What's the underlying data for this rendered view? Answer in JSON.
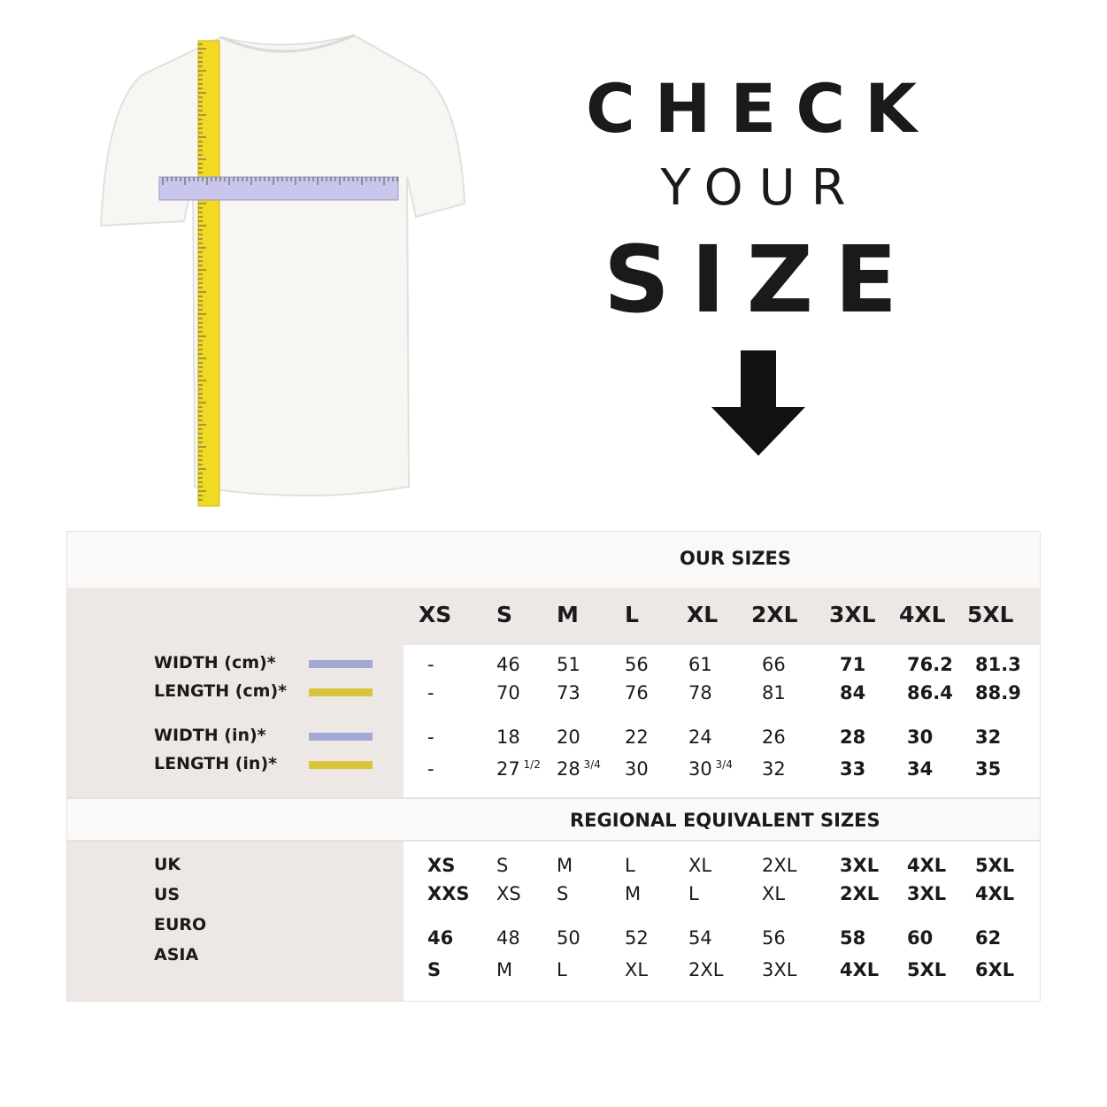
{
  "headline": {
    "line1": "CHECK",
    "line2": "YOUR",
    "line3": "SIZE"
  },
  "icons": {
    "arrow": "arrow-down-icon",
    "shirt": "tshirt-with-measuring-tapes"
  },
  "colors": {
    "width_swatch": "#a3a8d4",
    "length_swatch": "#d9c43c",
    "grey_band": "#ede8e6",
    "light_band": "#faf9f7"
  },
  "our_sizes": {
    "title": "OUR SIZES",
    "sizes": [
      "XS",
      "S",
      "M",
      "L",
      "XL",
      "2XL",
      "3XL",
      "4XL",
      "5XL"
    ],
    "rows": [
      {
        "label": "WIDTH (cm)*",
        "swatch": "width",
        "values": [
          "-",
          "46",
          "51",
          "56",
          "61",
          "66",
          "71",
          "76.2",
          "81.3"
        ]
      },
      {
        "label": "LENGTH (cm)*",
        "swatch": "length",
        "values": [
          "-",
          "70",
          "73",
          "76",
          "78",
          "81",
          "84",
          "86.4",
          "88.9"
        ]
      },
      {
        "label": "WIDTH (in)*",
        "swatch": "width",
        "values": [
          "-",
          "18",
          "20",
          "22",
          "24",
          "26",
          "28",
          "30",
          "32"
        ]
      },
      {
        "label": "LENGTH (in)*",
        "swatch": "length",
        "values": [
          "-",
          "27",
          "28",
          "30",
          "30",
          "32",
          "33",
          "34",
          "35"
        ],
        "fractions": [
          "",
          "1/2",
          "3/4",
          "",
          "3/4",
          "",
          "",
          "",
          ""
        ]
      }
    ]
  },
  "regional": {
    "title": "REGIONAL EQUIVALENT SIZES",
    "labels": [
      "UK",
      "US",
      "EURO",
      "ASIA"
    ],
    "rows": [
      [
        "XS",
        "S",
        "M",
        "L",
        "XL",
        "2XL",
        "3XL",
        "4XL",
        "5XL"
      ],
      [
        "XXS",
        "XS",
        "S",
        "M",
        "L",
        "XL",
        "2XL",
        "3XL",
        "4XL"
      ],
      [
        "46",
        "48",
        "50",
        "52",
        "54",
        "56",
        "58",
        "60",
        "62"
      ],
      [
        "S",
        "M",
        "L",
        "XL",
        "2XL",
        "3XL",
        "4XL",
        "5XL",
        "6XL"
      ]
    ]
  }
}
